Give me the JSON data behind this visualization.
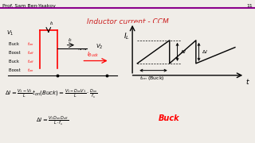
{
  "title": "Inductor current - CCM",
  "header_text": "Prof. Sam Ben-Yaakov",
  "slide_number": "11",
  "bg_color": "#f0ede8",
  "title_color": "#cc2222",
  "header_color": "#000000",
  "line_color_purple": "#8B008B",
  "graph_ylabel": "$I_L$",
  "graph_xlabel": "$t$",
  "graph_label_ton": "$t_{on}$ (Buck)",
  "graph_label_dI": "$\\Delta I$"
}
